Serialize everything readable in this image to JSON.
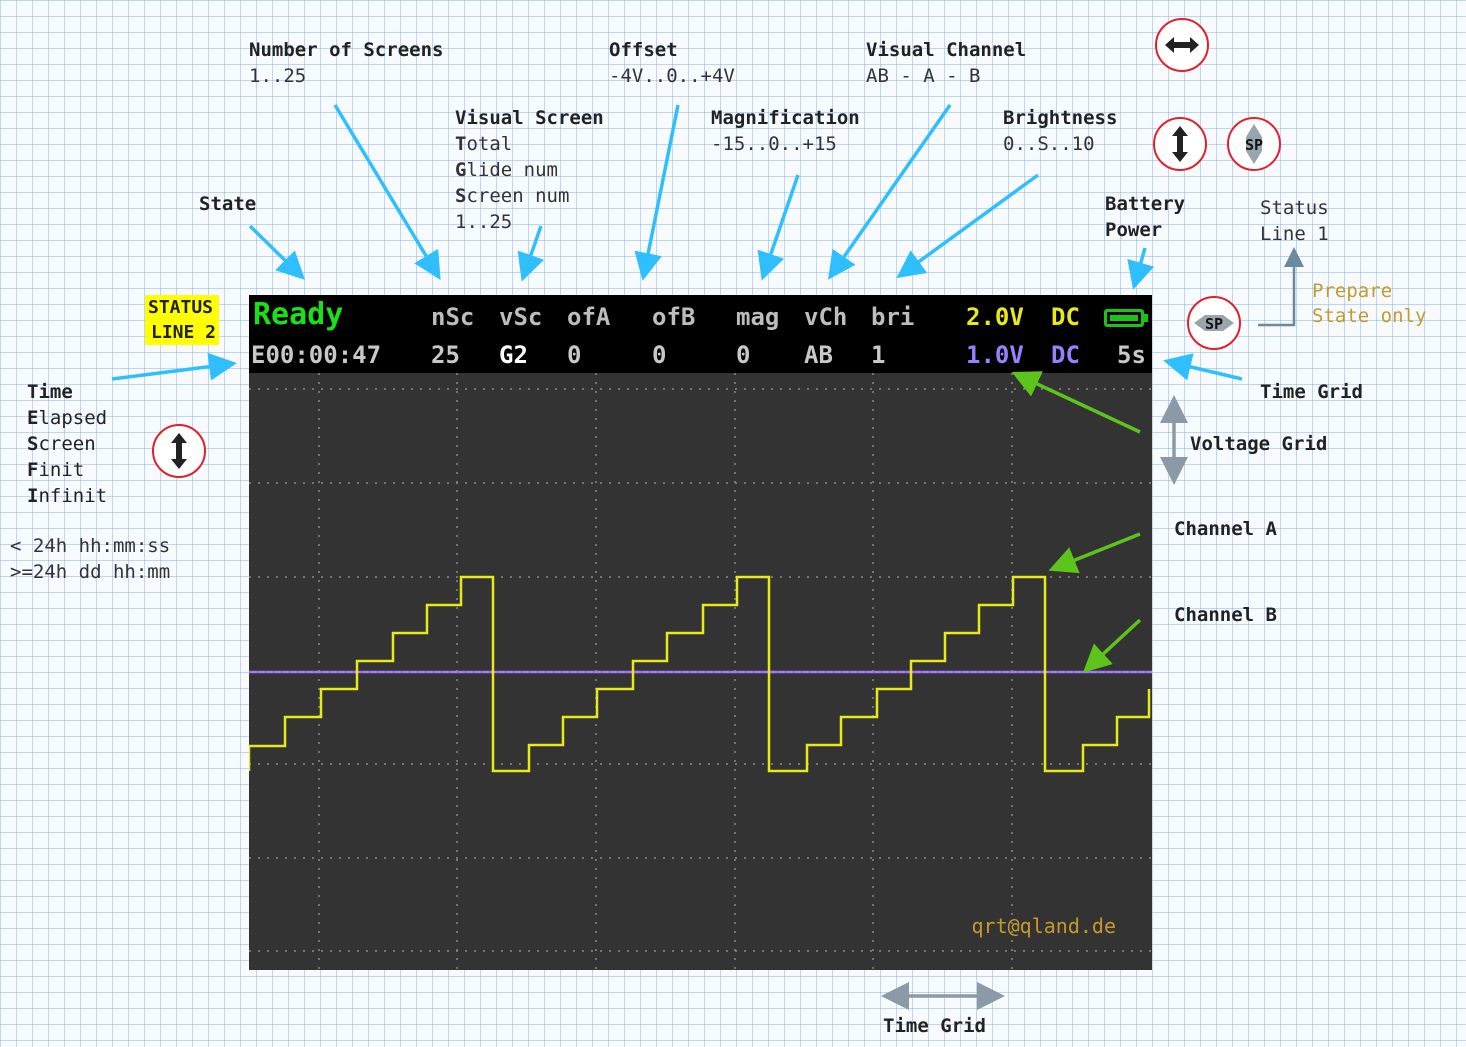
{
  "annotations": {
    "number_of_screens": {
      "title": "Number of Screens",
      "range": "1..25"
    },
    "offset": {
      "title": "Offset",
      "range": "-4V..0..+4V"
    },
    "visual_channel": {
      "title": "Visual Channel",
      "range": "AB - A - B"
    },
    "visual_screen": {
      "title": "Visual Screen",
      "lines": [
        {
          "first": "T",
          "rest": "otal"
        },
        {
          "first": "G",
          "rest": "lide num"
        },
        {
          "first": "S",
          "rest": "creen num"
        }
      ],
      "range": "1..25"
    },
    "magnification": {
      "title": "Magnification",
      "range": "-15..0..+15"
    },
    "brightness": {
      "title": "Brightness",
      "range": "0..S..10"
    },
    "state": {
      "title": "State"
    },
    "battery_power": {
      "line1": "Battery",
      "line2": "Power"
    },
    "status_line_1": {
      "line1": "Status",
      "line2": "Line 1"
    },
    "prepare_state": {
      "line1": "Prepare",
      "line2": "State only"
    },
    "status_line_2": {
      "line1": "STATUS",
      "line2": "LINE 2"
    },
    "time_mode": {
      "lines": [
        {
          "first": "T",
          "rest": "ime"
        },
        {
          "first": "E",
          "rest": "lapsed"
        },
        {
          "first": "S",
          "rest": "creen"
        },
        {
          "first": "F",
          "rest": "init"
        },
        {
          "first": "I",
          "rest": "nfinit"
        }
      ]
    },
    "time_format": {
      "line1": "< 24h hh:mm:ss",
      "line2": ">=24h dd hh:mm"
    },
    "time_grid_right": "Time Grid",
    "voltage_grid": "Voltage Grid",
    "channel_a": "Channel A",
    "channel_b": "Channel B",
    "time_grid_bottom": "Time Grid"
  },
  "icons": {
    "sp_label": "SP"
  },
  "screen": {
    "status_line_1": {
      "state": "Ready",
      "nsc": "nSc",
      "vsc": "vSc",
      "ofa": "ofA",
      "ofb": "ofB",
      "mag": "mag",
      "vch": "vCh",
      "bri": "bri",
      "volt_a": "2.0V",
      "coupling_a": "DC"
    },
    "status_line_2": {
      "time": "E00:00:47",
      "nsc": "25",
      "vsc": "G2",
      "ofa": "0",
      "ofb": "0",
      "mag": "0",
      "vch": "AB",
      "bri": "1",
      "volt_b": "1.0V",
      "coupling_b": "DC",
      "time_grid": "5s"
    },
    "watermark": "qrt@qland.de"
  },
  "colors": {
    "state_green": "#19e019",
    "channel_a_yellow": "#e8e81a",
    "channel_b_purple": "#9a80ff",
    "plot_bg": "#333333",
    "arrow_blue": "#2fbfff",
    "arrow_green": "#5cc41a",
    "arrow_gray": "#8a9aa6",
    "icon_red": "#e0202a"
  }
}
